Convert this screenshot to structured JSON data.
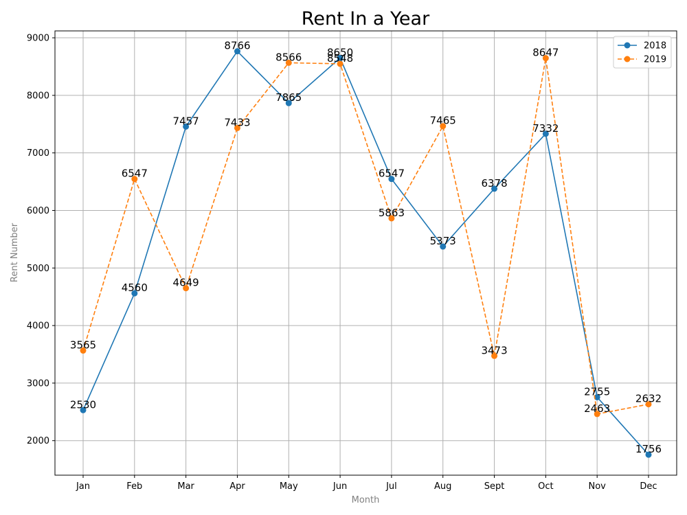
{
  "chart_data": {
    "type": "line",
    "title": "Rent In a Year",
    "xlabel": "Month",
    "ylabel": "Rent Number",
    "categories": [
      "Jan",
      "Feb",
      "Mar",
      "Apr",
      "May",
      "Jun",
      "Jul",
      "Aug",
      "Sept",
      "Oct",
      "Nov",
      "Dec"
    ],
    "series": [
      {
        "name": "2018",
        "values": [
          2530,
          4560,
          7457,
          8766,
          7865,
          8650,
          6547,
          5373,
          6378,
          7332,
          2755,
          1756
        ],
        "color": "#1f77b4",
        "line_style": "solid",
        "marker": "circle"
      },
      {
        "name": "2019",
        "values": [
          3565,
          6547,
          4649,
          7433,
          8566,
          8548,
          5863,
          7465,
          3473,
          8647,
          2463,
          2632
        ],
        "color": "#ff7f0e",
        "line_style": "dashed",
        "marker": "circle"
      }
    ],
    "ylim": [
      1400,
      9120
    ],
    "yticks": [
      2000,
      3000,
      4000,
      5000,
      6000,
      7000,
      8000,
      9000
    ],
    "grid": true,
    "legend_position": "top-right",
    "data_labels": true
  }
}
